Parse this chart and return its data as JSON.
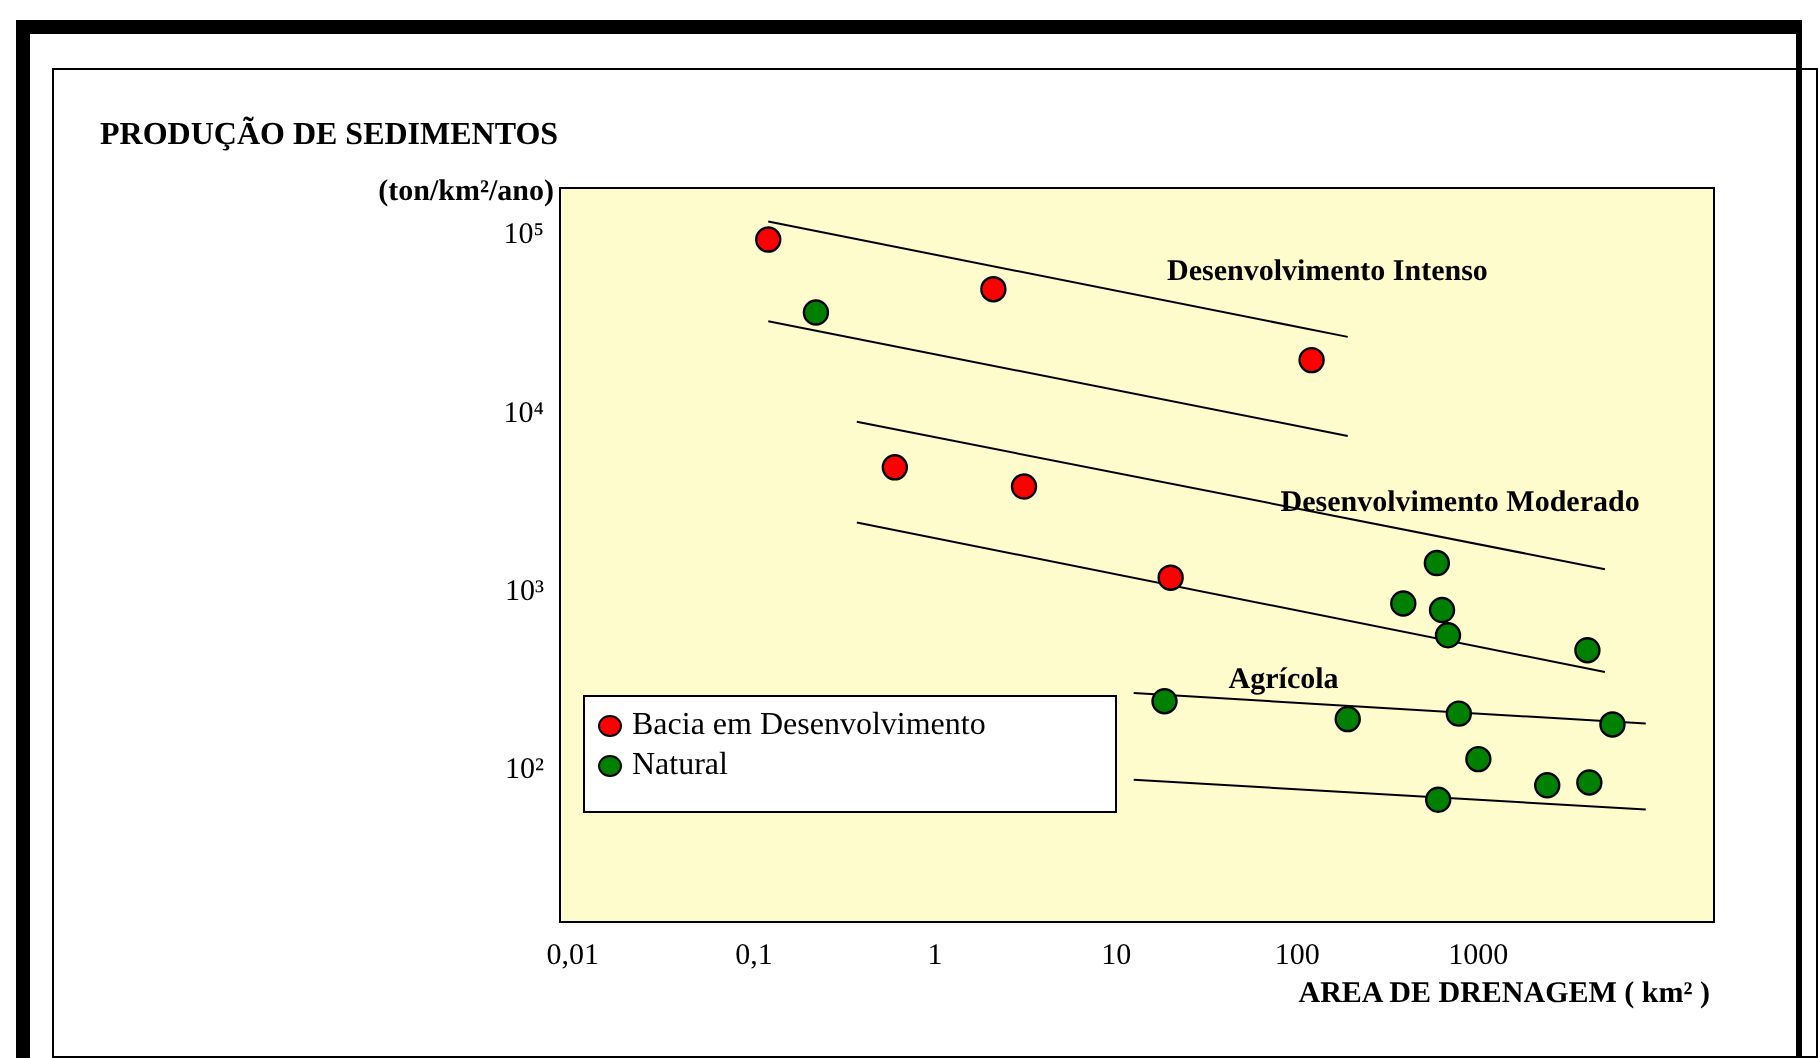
{
  "chart_data": {
    "type": "scatter",
    "title": "PRODUÇÃO DE SEDIMENTOS",
    "ylabel": "(ton/km²/ano)",
    "xlabel": "AREA DE DRENAGEM ( km² )",
    "log": "xy",
    "legend": "bottom left",
    "xlim": [
      0.0085,
      20000
    ],
    "ylim": [
      14,
      185000
    ],
    "xticks": [
      {
        "value": 0.01,
        "label": "0,01"
      },
      {
        "value": 0.1,
        "label": "0,1"
      },
      1,
      10,
      100,
      1000
    ],
    "yticks": [
      {
        "value": 100,
        "label": "10²"
      },
      {
        "value": 1000,
        "label": "10³"
      },
      {
        "value": 10000,
        "label": "10⁴"
      },
      {
        "value": 100000,
        "label": "10⁵"
      }
    ],
    "annotations": [
      "Desenvolvimento Intenso",
      "Desenvolvimento Moderado",
      "Agrícola"
    ],
    "series": [
      {
        "name": "Bacia em Desenvolvimento",
        "color": "#ff0000",
        "marker": "circle",
        "x": [
          0.12,
          2.1,
          120,
          0.6,
          3.1,
          20
        ],
        "values": [
          95000,
          50000,
          20000,
          5000,
          3900,
          1200
        ]
      },
      {
        "name": "Natural",
        "color": "#008000",
        "marker": "circle",
        "x": [
          0.22,
          590,
          385,
          630,
          680,
          4000,
          18.5,
          190,
          780,
          5500,
          1000,
          2400,
          4100,
          600
        ],
        "values": [
          37000,
          1450,
          860,
          790,
          570,
          470,
          243,
          193,
          207,
          180,
          115,
          82,
          85,
          68
        ]
      },
      {
        "type": "line",
        "color": "#000000",
        "x": [
          0.12,
          190
        ],
        "values": [
          120000,
          27000
        ]
      },
      {
        "type": "line",
        "color": "#000000",
        "x": [
          0.12,
          190
        ],
        "values": [
          33000,
          7500
        ]
      },
      {
        "type": "line",
        "color": "#000000",
        "x": [
          0.37,
          5000
        ],
        "values": [
          9000,
          1340
        ]
      },
      {
        "type": "line",
        "color": "#000000",
        "x": [
          0.37,
          5000
        ],
        "values": [
          2450,
          355
        ]
      },
      {
        "type": "line",
        "color": "#000000",
        "x": [
          12.5,
          8400
        ],
        "values": [
          270,
          182
        ]
      },
      {
        "type": "line",
        "color": "#000000",
        "x": [
          12.5,
          8400
        ],
        "values": [
          88,
          60
        ]
      }
    ]
  }
}
